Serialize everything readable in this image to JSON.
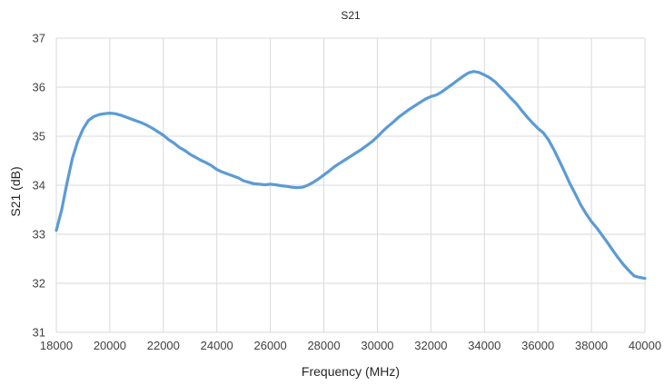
{
  "chart_data": {
    "type": "line",
    "title": "S21",
    "xlabel": "Frequency (MHz)",
    "ylabel": "S21 (dB)",
    "xlim": [
      18000,
      40000
    ],
    "ylim": [
      31,
      37
    ],
    "x_ticks": [
      18000,
      20000,
      22000,
      24000,
      26000,
      28000,
      30000,
      32000,
      34000,
      36000,
      38000,
      40000
    ],
    "y_ticks": [
      31,
      32,
      33,
      34,
      35,
      36,
      37
    ],
    "grid": true,
    "legend": "none",
    "series": [
      {
        "color": "#5b9bd5",
        "x": [
          18000,
          18200,
          18400,
          18600,
          18800,
          19000,
          19200,
          19400,
          19600,
          19800,
          20000,
          20200,
          20400,
          20600,
          20800,
          21000,
          21200,
          21400,
          21600,
          21800,
          22000,
          22200,
          22400,
          22600,
          22800,
          23000,
          23200,
          23400,
          23600,
          23800,
          24000,
          24200,
          24400,
          24600,
          24800,
          25000,
          25200,
          25400,
          25600,
          25800,
          26000,
          26200,
          26400,
          26600,
          26800,
          27000,
          27200,
          27400,
          27600,
          27800,
          28000,
          28200,
          28400,
          28600,
          28800,
          29000,
          29200,
          29400,
          29600,
          29800,
          30000,
          30200,
          30400,
          30600,
          30800,
          31000,
          31200,
          31400,
          31600,
          31800,
          32000,
          32200,
          32400,
          32600,
          32800,
          33000,
          33200,
          33400,
          33600,
          33800,
          34000,
          34200,
          34400,
          34600,
          34800,
          35000,
          35200,
          35400,
          35600,
          35800,
          36000,
          36200,
          36400,
          36600,
          36800,
          37000,
          37200,
          37400,
          37600,
          37800,
          38000,
          38200,
          38400,
          38600,
          38800,
          39000,
          39200,
          39400,
          39600,
          39800,
          40000
        ],
        "values": [
          33.08,
          33.5,
          34.05,
          34.55,
          34.9,
          35.15,
          35.32,
          35.4,
          35.44,
          35.46,
          35.47,
          35.46,
          35.43,
          35.39,
          35.35,
          35.31,
          35.27,
          35.22,
          35.16,
          35.09,
          35.02,
          34.93,
          34.86,
          34.77,
          34.71,
          34.63,
          34.57,
          34.51,
          34.46,
          34.4,
          34.32,
          34.27,
          34.23,
          34.19,
          34.15,
          34.09,
          34.06,
          34.03,
          34.02,
          34.01,
          34.02,
          34.01,
          33.99,
          33.98,
          33.96,
          33.95,
          33.96,
          34.0,
          34.06,
          34.13,
          34.21,
          34.29,
          34.38,
          34.45,
          34.52,
          34.59,
          34.66,
          34.73,
          34.81,
          34.89,
          34.99,
          35.1,
          35.2,
          35.29,
          35.39,
          35.47,
          35.55,
          35.62,
          35.69,
          35.76,
          35.81,
          35.84,
          35.9,
          35.98,
          36.06,
          36.14,
          36.22,
          36.29,
          36.32,
          36.3,
          36.25,
          36.19,
          36.11,
          36.0,
          35.89,
          35.77,
          35.66,
          35.52,
          35.39,
          35.27,
          35.16,
          35.07,
          34.92,
          34.72,
          34.5,
          34.27,
          34.03,
          33.82,
          33.6,
          33.42,
          33.26,
          33.13,
          32.98,
          32.83,
          32.67,
          32.52,
          32.38,
          32.26,
          32.15,
          32.12,
          32.1
        ]
      }
    ]
  }
}
